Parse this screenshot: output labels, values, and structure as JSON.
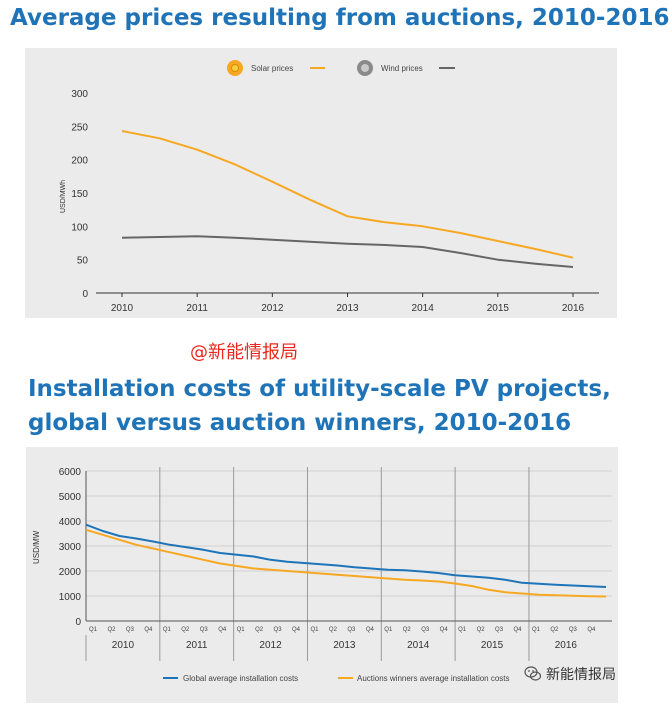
{
  "title1": "Average prices resulting from auctions, 2010-2016",
  "title2": "Installation costs of utility-scale PV projects, global versus auction winners, 2010-2016",
  "watermark_top": "@新能情报局",
  "watermark_bottom": "新能情报局",
  "colors": {
    "solar": "#f7a823",
    "wind": "#666666",
    "global": "#1d74b9",
    "auction": "#f7a823",
    "title": "#1f73b7"
  },
  "chart_data": [
    {
      "type": "line",
      "title": "Average prices resulting from auctions, 2010-2016",
      "xlabel": "",
      "ylabel": "USD/MWh",
      "ylim": [
        0,
        300
      ],
      "yticks": [
        0,
        50,
        100,
        150,
        200,
        250,
        300
      ],
      "xlim": [
        2010,
        2016
      ],
      "xticks": [
        "2010",
        "2011",
        "2012",
        "2013",
        "2014",
        "2015",
        "2016"
      ],
      "legend": "top-center",
      "grid": false,
      "series": [
        {
          "name": "Solar prices",
          "color": "#f7a823",
          "x": [
            2010,
            2010.5,
            2011,
            2011.5,
            2012,
            2012.5,
            2013,
            2013.5,
            2014,
            2014.5,
            2015,
            2015.5,
            2016
          ],
          "values": [
            243,
            232,
            215,
            193,
            167,
            140,
            115,
            106,
            100,
            90,
            78,
            66,
            53
          ]
        },
        {
          "name": "Wind prices",
          "color": "#666666",
          "x": [
            2010,
            2010.5,
            2011,
            2011.5,
            2012,
            2012.5,
            2013,
            2013.5,
            2014,
            2014.5,
            2015,
            2015.5,
            2016
          ],
          "values": [
            83,
            84,
            85,
            83,
            80,
            77,
            74,
            72,
            69,
            60,
            50,
            44,
            39
          ]
        }
      ]
    },
    {
      "type": "line",
      "title": "Installation costs of utility-scale PV projects, global versus auction winners, 2010-2016",
      "xlabel": "",
      "ylabel": "USD/MW",
      "ylim": [
        0,
        6000
      ],
      "yticks": [
        0,
        1000,
        2000,
        3000,
        4000,
        5000,
        6000
      ],
      "quarters": [
        "Q1",
        "Q2",
        "Q3",
        "Q4"
      ],
      "years": [
        "2010",
        "2011",
        "2012",
        "2013",
        "2014",
        "2015",
        "2016"
      ],
      "legend": "bottom",
      "grid": true,
      "series": [
        {
          "name": "Global average installation costs",
          "color": "#1d74b9",
          "values": [
            3850,
            3600,
            3400,
            3300,
            3180,
            3050,
            2950,
            2850,
            2720,
            2650,
            2580,
            2450,
            2370,
            2320,
            2270,
            2220,
            2150,
            2100,
            2050,
            2030,
            1980,
            1920,
            1830,
            1780,
            1730,
            1650,
            1530,
            1490,
            1450,
            1420,
            1390,
            1360
          ]
        },
        {
          "name": "Auctions winners average installation costs",
          "color": "#f7a823",
          "values": [
            3650,
            3450,
            3250,
            3050,
            2900,
            2750,
            2600,
            2450,
            2300,
            2200,
            2100,
            2050,
            2000,
            1950,
            1900,
            1850,
            1800,
            1750,
            1700,
            1650,
            1620,
            1580,
            1500,
            1400,
            1250,
            1150,
            1100,
            1050,
            1030,
            1010,
            990,
            980
          ]
        }
      ]
    }
  ]
}
